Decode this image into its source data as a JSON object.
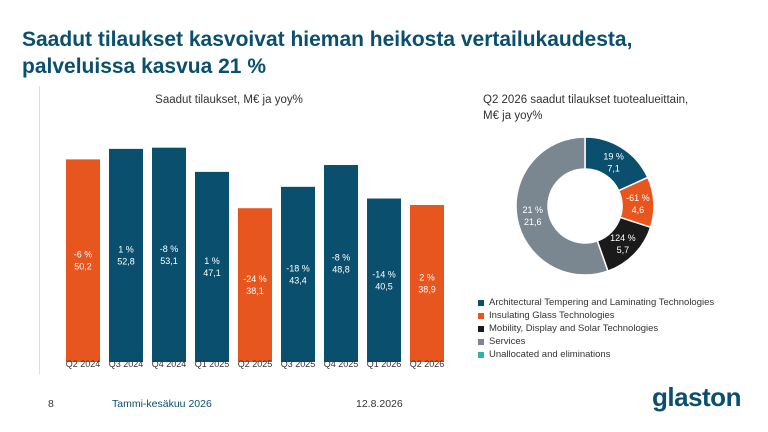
{
  "slide": {
    "title_line1": "Saadut tilaukset kasvoivat hieman heikosta vertailukaudesta,",
    "title_line2": "palveluissa kasvua 21 %",
    "page_number": "8",
    "period": "Tammi-kesäkuu 2026",
    "date": "12.8.2026",
    "logo_text": "glaston"
  },
  "chart_data": [
    {
      "type": "bar",
      "title": "Saadut tilaukset, M€ ja yoy%",
      "categories": [
        "Q2 2024",
        "Q3 2024",
        "Q4 2024",
        "Q1 2025",
        "Q2 2025",
        "Q3 2025",
        "Q4 2025",
        "Q1 2026",
        "Q2 2026"
      ],
      "values": [
        50.2,
        52.8,
        53.1,
        47.1,
        38.1,
        43.4,
        48.8,
        40.5,
        38.9
      ],
      "value_labels": [
        "50,2",
        "52,8",
        "53,1",
        "47,1",
        "38,1",
        "43,4",
        "48,8",
        "40,5",
        "38,9"
      ],
      "yoy_labels": [
        "-6 %",
        "1 %",
        "-8 %",
        "1 %",
        "-24 %",
        "-18 %",
        "-8 %",
        "-14 %",
        "2 %"
      ],
      "highlight_quarters": [
        "Q2 2024",
        "Q2 2025",
        "Q2 2026"
      ],
      "ylim": [
        0,
        55
      ],
      "grid": false,
      "colors": {
        "default": "#0a4f6e",
        "highlight": "#e8561f"
      }
    },
    {
      "type": "pie",
      "subtype": "donut",
      "title_line1": "Q2 2026 saadut tilaukset tuotealueittain,",
      "title_line2": "M€ ja yoy%",
      "slices": [
        {
          "name": "Architectural Tempering and Laminating Technologies",
          "value": 7.1,
          "value_label": "7,1",
          "yoy_label": "19 %",
          "color": "#0a4f6e"
        },
        {
          "name": "Insulating Glass Technologies",
          "value": 4.6,
          "value_label": "4,6",
          "yoy_label": "-61 %",
          "color": "#e8561f"
        },
        {
          "name": "Mobility, Display and Solar Technologies",
          "value": 5.7,
          "value_label": "5,7",
          "yoy_label": "124 %",
          "color": "#1a1a1a"
        },
        {
          "name": "Services",
          "value": 21.6,
          "value_label": "21,6",
          "yoy_label": "21 %",
          "color": "#7a8790"
        },
        {
          "name": "Unallocated and eliminations",
          "value": 0,
          "value_label": "",
          "yoy_label": "",
          "color": "#2bb3a8"
        }
      ],
      "legend_position": "bottom"
    }
  ]
}
